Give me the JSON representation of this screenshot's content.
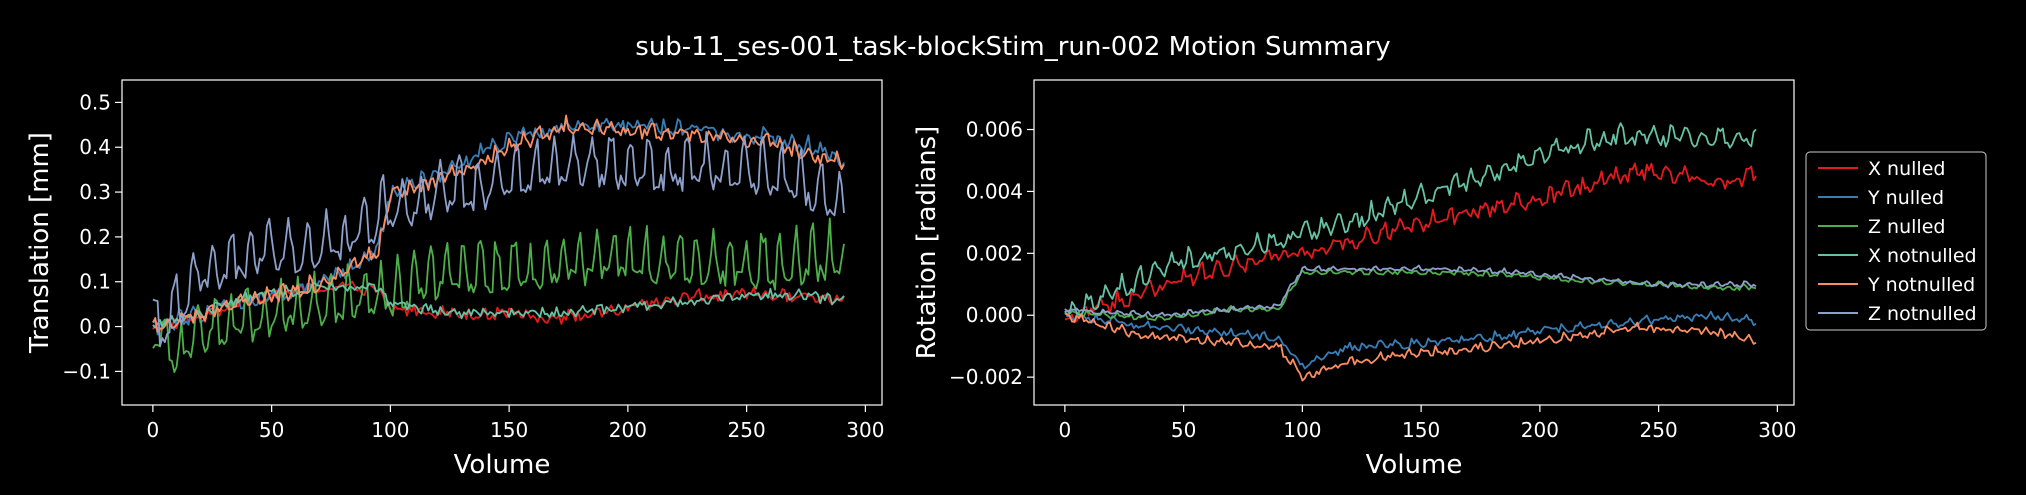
{
  "title": "sub-11_ses-001_task-blockStim_run-002 Motion Summary",
  "colors": {
    "background": "#000000",
    "X nulled": "#e41a1c",
    "Y nulled": "#377eb8",
    "Z nulled": "#4daf4a",
    "X notnulled": "#66c2a5",
    "Y notnulled": "#fc8d62",
    "Z notnulled": "#8da0cb"
  },
  "legend": {
    "placement": "right",
    "entries": [
      "X nulled",
      "Y nulled",
      "Z nulled",
      "X notnulled",
      "Y notnulled",
      "Z notnulled"
    ]
  },
  "chart_data": [
    {
      "type": "line",
      "xlabel": "Volume",
      "ylabel": "Translation [mm]",
      "xlim": [
        -13,
        307
      ],
      "ylim": [
        -0.175,
        0.55
      ],
      "xticks": [
        0,
        50,
        100,
        150,
        200,
        250,
        300
      ],
      "yticks": [
        -0.1,
        0.0,
        0.1,
        0.2,
        0.3,
        0.4,
        0.5
      ],
      "ytick_labels": [
        "−0.1",
        "0.0",
        "0.1",
        "0.2",
        "0.3",
        "0.4",
        "0.5"
      ],
      "grid": false,
      "n_volumes": 292,
      "series": [
        {
          "name": "X nulled",
          "color": "#e41a1c",
          "points": [
            [
              0,
              0.0
            ],
            [
              20,
              0.02
            ],
            [
              40,
              0.06
            ],
            [
              60,
              0.08
            ],
            [
              80,
              0.09
            ],
            [
              95,
              0.08
            ],
            [
              100,
              0.04
            ],
            [
              130,
              0.03
            ],
            [
              150,
              0.03
            ],
            [
              170,
              0.02
            ],
            [
              190,
              0.03
            ],
            [
              210,
              0.05
            ],
            [
              230,
              0.07
            ],
            [
              250,
              0.07
            ],
            [
              270,
              0.07
            ],
            [
              291,
              0.06
            ]
          ],
          "noise": 0.012,
          "period": 6,
          "amp": 0.008
        },
        {
          "name": "Y nulled",
          "color": "#377eb8",
          "points": [
            [
              0,
              0.0
            ],
            [
              20,
              0.03
            ],
            [
              40,
              0.06
            ],
            [
              60,
              0.08
            ],
            [
              80,
              0.12
            ],
            [
              95,
              0.18
            ],
            [
              100,
              0.3
            ],
            [
              120,
              0.34
            ],
            [
              150,
              0.42
            ],
            [
              175,
              0.45
            ],
            [
              200,
              0.45
            ],
            [
              230,
              0.44
            ],
            [
              260,
              0.42
            ],
            [
              280,
              0.4
            ],
            [
              291,
              0.37
            ]
          ],
          "noise": 0.015,
          "period": 6,
          "amp": 0.015
        },
        {
          "name": "Z nulled",
          "color": "#4daf4a",
          "points": [
            [
              0,
              0.0
            ],
            [
              10,
              -0.05
            ],
            [
              20,
              0.0
            ],
            [
              40,
              0.02
            ],
            [
              60,
              0.05
            ],
            [
              80,
              0.07
            ],
            [
              100,
              0.08
            ],
            [
              120,
              0.12
            ],
            [
              150,
              0.13
            ],
            [
              180,
              0.15
            ],
            [
              200,
              0.16
            ],
            [
              230,
              0.15
            ],
            [
              260,
              0.14
            ],
            [
              291,
              0.17
            ]
          ],
          "noise": 0.02,
          "period": 7,
          "amp": 0.1
        },
        {
          "name": "X notnulled",
          "color": "#66c2a5",
          "points": [
            [
              0,
              0.0
            ],
            [
              20,
              0.03
            ],
            [
              40,
              0.07
            ],
            [
              60,
              0.08
            ],
            [
              80,
              0.09
            ],
            [
              95,
              0.09
            ],
            [
              100,
              0.05
            ],
            [
              130,
              0.03
            ],
            [
              150,
              0.03
            ],
            [
              170,
              0.03
            ],
            [
              190,
              0.04
            ],
            [
              210,
              0.05
            ],
            [
              230,
              0.06
            ],
            [
              250,
              0.07
            ],
            [
              270,
              0.07
            ],
            [
              291,
              0.06
            ]
          ],
          "noise": 0.01,
          "period": 6,
          "amp": 0.008
        },
        {
          "name": "Y notnulled",
          "color": "#fc8d62",
          "points": [
            [
              0,
              0.0
            ],
            [
              20,
              0.03
            ],
            [
              40,
              0.06
            ],
            [
              60,
              0.08
            ],
            [
              80,
              0.12
            ],
            [
              95,
              0.17
            ],
            [
              100,
              0.3
            ],
            [
              120,
              0.33
            ],
            [
              150,
              0.4
            ],
            [
              175,
              0.45
            ],
            [
              200,
              0.44
            ],
            [
              230,
              0.43
            ],
            [
              260,
              0.41
            ],
            [
              280,
              0.38
            ],
            [
              291,
              0.37
            ]
          ],
          "noise": 0.012,
          "period": 6,
          "amp": 0.02
        },
        {
          "name": "Z notnulled",
          "color": "#8da0cb",
          "points": [
            [
              0,
              0.0
            ],
            [
              10,
              0.05
            ],
            [
              20,
              0.12
            ],
            [
              40,
              0.17
            ],
            [
              60,
              0.18
            ],
            [
              80,
              0.2
            ],
            [
              100,
              0.27
            ],
            [
              120,
              0.3
            ],
            [
              150,
              0.33
            ],
            [
              175,
              0.37
            ],
            [
              200,
              0.36
            ],
            [
              230,
              0.36
            ],
            [
              260,
              0.35
            ],
            [
              291,
              0.29
            ]
          ],
          "noise": 0.02,
          "period": 8,
          "amp": 0.1
        }
      ]
    },
    {
      "type": "line",
      "xlabel": "Volume",
      "ylabel": "Rotation [radians]",
      "xlim": [
        -13,
        307
      ],
      "ylim": [
        -0.0029,
        0.0076
      ],
      "xticks": [
        0,
        50,
        100,
        150,
        200,
        250,
        300
      ],
      "yticks": [
        -0.002,
        0.0,
        0.002,
        0.004,
        0.006
      ],
      "ytick_labels": [
        "−0.002",
        "0.000",
        "0.002",
        "0.004",
        "0.006"
      ],
      "grid": false,
      "n_volumes": 292,
      "series": [
        {
          "name": "X nulled",
          "color": "#e41a1c",
          "points": [
            [
              0,
              -0.0001
            ],
            [
              20,
              0.0004
            ],
            [
              50,
              0.0012
            ],
            [
              80,
              0.0018
            ],
            [
              100,
              0.002
            ],
            [
              130,
              0.0026
            ],
            [
              150,
              0.003
            ],
            [
              180,
              0.0035
            ],
            [
              200,
              0.0038
            ],
            [
              230,
              0.0045
            ],
            [
              250,
              0.0047
            ],
            [
              270,
              0.0043
            ],
            [
              291,
              0.0045
            ]
          ],
          "noise": 0.0002,
          "period": 7,
          "amp": 0.0003
        },
        {
          "name": "Y nulled",
          "color": "#377eb8",
          "points": [
            [
              0,
              0.0
            ],
            [
              30,
              -0.0003
            ],
            [
              60,
              -0.0005
            ],
            [
              90,
              -0.0007
            ],
            [
              98,
              -0.0015
            ],
            [
              100,
              -0.0016
            ],
            [
              120,
              -0.001
            ],
            [
              150,
              -0.0009
            ],
            [
              180,
              -0.0007
            ],
            [
              210,
              -0.0004
            ],
            [
              240,
              -0.0002
            ],
            [
              270,
              0.0
            ],
            [
              291,
              -0.0002
            ]
          ],
          "noise": 0.0001,
          "period": 7,
          "amp": 0.00015
        },
        {
          "name": "Z nulled",
          "color": "#4daf4a",
          "points": [
            [
              0,
              0.0001
            ],
            [
              40,
              -0.0001
            ],
            [
              70,
              0.0002
            ],
            [
              90,
              0.0002
            ],
            [
              100,
              0.0014
            ],
            [
              130,
              0.0014
            ],
            [
              160,
              0.0014
            ],
            [
              190,
              0.0013
            ],
            [
              220,
              0.0011
            ],
            [
              250,
              0.001
            ],
            [
              270,
              0.0009
            ],
            [
              291,
              0.0009
            ]
          ],
          "noise": 5e-05,
          "period": 6,
          "amp": 0.0001
        },
        {
          "name": "X notnulled",
          "color": "#66c2a5",
          "points": [
            [
              0,
              0.0001
            ],
            [
              20,
              0.0008
            ],
            [
              50,
              0.0018
            ],
            [
              80,
              0.0023
            ],
            [
              100,
              0.0026
            ],
            [
              130,
              0.0033
            ],
            [
              150,
              0.0039
            ],
            [
              180,
              0.0046
            ],
            [
              200,
              0.0052
            ],
            [
              230,
              0.0058
            ],
            [
              250,
              0.0058
            ],
            [
              270,
              0.0058
            ],
            [
              291,
              0.0057
            ]
          ],
          "noise": 0.0002,
          "period": 7,
          "amp": 0.0004
        },
        {
          "name": "Y notnulled",
          "color": "#fc8d62",
          "points": [
            [
              0,
              0.0
            ],
            [
              30,
              -0.0006
            ],
            [
              60,
              -0.0008
            ],
            [
              90,
              -0.001
            ],
            [
              98,
              -0.0018
            ],
            [
              100,
              -0.002
            ],
            [
              120,
              -0.0015
            ],
            [
              150,
              -0.0012
            ],
            [
              180,
              -0.001
            ],
            [
              210,
              -0.0007
            ],
            [
              240,
              -0.0004
            ],
            [
              270,
              -0.0005
            ],
            [
              291,
              -0.0008
            ]
          ],
          "noise": 0.0001,
          "period": 6,
          "amp": 0.00015
        },
        {
          "name": "Z notnulled",
          "color": "#8da0cb",
          "points": [
            [
              0,
              0.0002
            ],
            [
              40,
              0.0
            ],
            [
              70,
              0.0002
            ],
            [
              90,
              0.0003
            ],
            [
              100,
              0.0015
            ],
            [
              130,
              0.0015
            ],
            [
              160,
              0.0015
            ],
            [
              190,
              0.0014
            ],
            [
              220,
              0.0012
            ],
            [
              250,
              0.001
            ],
            [
              270,
              0.001
            ],
            [
              291,
              0.001
            ]
          ],
          "noise": 5e-05,
          "period": 6,
          "amp": 0.0001
        }
      ]
    }
  ]
}
